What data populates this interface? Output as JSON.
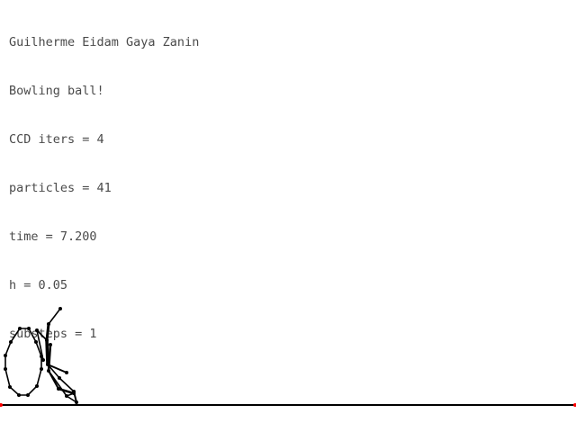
{
  "hud": {
    "author": "Guilherme Eidam Gaya Zanin",
    "scenario": "Bowling ball!",
    "ccd_iters": "CCD iters = 4",
    "particles": "particles = 41",
    "time": "time = 7.200",
    "h": "h = 0.05",
    "substeps": "substeps = 1"
  },
  "colors": {
    "background": "#ffffff",
    "text": "#4a4a4a",
    "stroke": "#000000",
    "ground_endpoint": "#ff0000"
  }
}
